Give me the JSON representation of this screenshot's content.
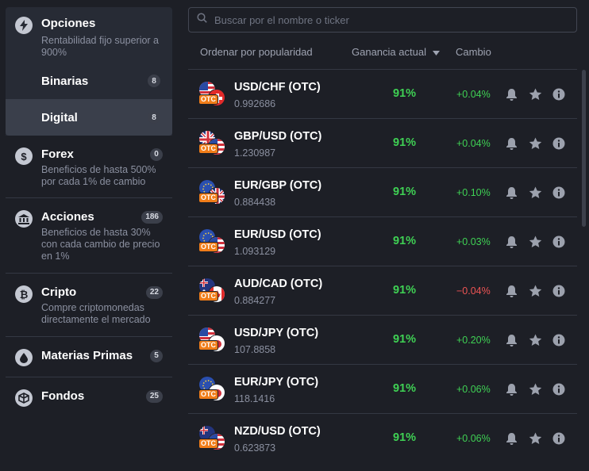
{
  "sidebar": {
    "opciones": {
      "title": "Opciones",
      "desc": "Rentabilidad fijo superior a 900%",
      "icon": "lightning-icon",
      "subs": [
        {
          "label": "Binarias",
          "count": "8"
        },
        {
          "label": "Digital",
          "count": "8"
        }
      ]
    },
    "categories": [
      {
        "title": "Forex",
        "count": "0",
        "desc": "Beneficios de hasta 500% por cada 1% de cambio",
        "icon": "dollar-icon"
      },
      {
        "title": "Acciones",
        "count": "186",
        "desc": "Beneficios de hasta 30% con cada cambio de precio en 1%",
        "icon": "bank-icon"
      },
      {
        "title": "Cripto",
        "count": "22",
        "desc": "Compre criptomonedas directamente el mercado",
        "icon": "bitcoin-icon"
      },
      {
        "title": "Materias Primas",
        "count": "5",
        "desc": "",
        "icon": "drop-icon"
      },
      {
        "title": "Fondos",
        "count": "25",
        "desc": "",
        "icon": "cube-icon"
      }
    ]
  },
  "search": {
    "placeholder": "Buscar por el nombre o ticker"
  },
  "header": {
    "sort_label": "Ordenar por popularidad",
    "profit_label": "Ganancia actual",
    "change_label": "Cambio"
  },
  "assets": [
    {
      "name": "USD/CHF (OTC)",
      "price": "0.992686",
      "profit": "91%",
      "change": "+0.04%",
      "direction": "up",
      "flag1": "us",
      "flag2": "ch"
    },
    {
      "name": "GBP/USD (OTC)",
      "price": "1.230987",
      "profit": "91%",
      "change": "+0.04%",
      "direction": "up",
      "flag1": "gb",
      "flag2": "us"
    },
    {
      "name": "EUR/GBP (OTC)",
      "price": "0.884438",
      "profit": "91%",
      "change": "+0.10%",
      "direction": "up",
      "flag1": "eu",
      "flag2": "gb"
    },
    {
      "name": "EUR/USD (OTC)",
      "price": "1.093129",
      "profit": "91%",
      "change": "+0.03%",
      "direction": "up",
      "flag1": "eu",
      "flag2": "us"
    },
    {
      "name": "AUD/CAD (OTC)",
      "price": "0.884277",
      "profit": "91%",
      "change": "−0.04%",
      "direction": "down",
      "flag1": "au",
      "flag2": "ca"
    },
    {
      "name": "USD/JPY (OTC)",
      "price": "107.8858",
      "profit": "91%",
      "change": "+0.20%",
      "direction": "up",
      "flag1": "us",
      "flag2": "jp"
    },
    {
      "name": "EUR/JPY (OTC)",
      "price": "118.1416",
      "profit": "91%",
      "change": "+0.06%",
      "direction": "up",
      "flag1": "eu",
      "flag2": "jp"
    },
    {
      "name": "NZD/USD (OTC)",
      "price": "0.623873",
      "profit": "91%",
      "change": "+0.06%",
      "direction": "up",
      "flag1": "nz",
      "flag2": "us"
    }
  ],
  "otc_label": "OTC",
  "colors": {
    "positive": "#3fd154",
    "negative": "#ee5454",
    "otc_badge": "#f07d19",
    "sidebar_active": "#3a3f4b"
  }
}
